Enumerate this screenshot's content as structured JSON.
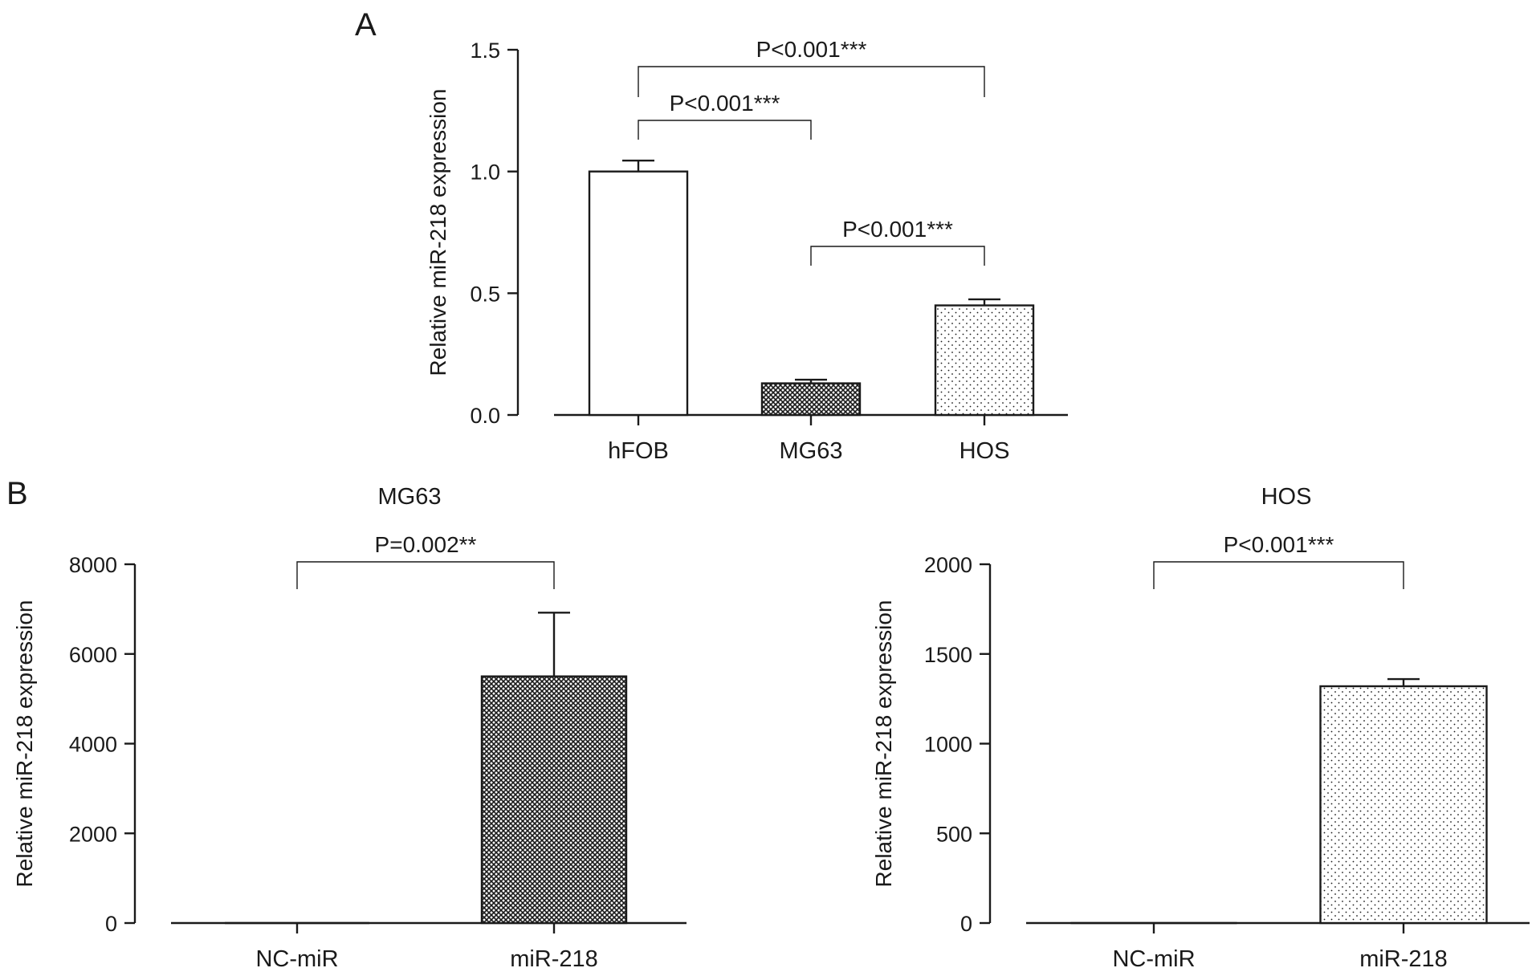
{
  "figure": {
    "colors": {
      "ink": "#1a1a1a",
      "background": "#ffffff"
    }
  },
  "chart_data": [
    {
      "id": "A",
      "panel_label": "A",
      "type": "bar",
      "title": "",
      "ylabel": "Relative miR-218 expression",
      "xlabel": "",
      "categories": [
        "hFOB",
        "MG63",
        "HOS"
      ],
      "values": [
        1.0,
        0.13,
        0.45
      ],
      "errors": [
        0.045,
        0.015,
        0.025
      ],
      "patterns": [
        "none",
        "crosshatch",
        "dots"
      ],
      "ylim": [
        0,
        1.5
      ],
      "yticks": [
        "0.0",
        "0.5",
        "1.0",
        "1.5"
      ],
      "ytick_values": [
        0,
        0.5,
        1.0,
        1.5
      ],
      "comparisons": [
        {
          "from": 0,
          "to": 1,
          "label": "P<0.001***"
        },
        {
          "from": 0,
          "to": 2,
          "label": "P<0.001***"
        },
        {
          "from": 1,
          "to": 2,
          "label": "P<0.001***"
        }
      ],
      "grid": false,
      "legend": "none"
    },
    {
      "id": "B1",
      "panel_label": "B",
      "type": "bar",
      "title": "MG63",
      "ylabel": "Relative miR-218 expression",
      "xlabel": "",
      "categories": [
        "NC-miR",
        "miR-218"
      ],
      "values": [
        1,
        5500
      ],
      "errors": [
        0,
        1420
      ],
      "patterns": [
        "none",
        "crosshatch"
      ],
      "ylim": [
        0,
        8000
      ],
      "yticks": [
        "0",
        "2000",
        "4000",
        "6000",
        "8000"
      ],
      "ytick_values": [
        0,
        2000,
        4000,
        6000,
        8000
      ],
      "comparisons": [
        {
          "from": 0,
          "to": 1,
          "label": "P=0.002**"
        }
      ],
      "grid": false,
      "legend": "none"
    },
    {
      "id": "B2",
      "panel_label": "",
      "type": "bar",
      "title": "HOS",
      "ylabel": "Relative miR-218 expression",
      "xlabel": "",
      "categories": [
        "NC-miR",
        "miR-218"
      ],
      "values": [
        1,
        1320
      ],
      "errors": [
        0,
        40
      ],
      "patterns": [
        "none",
        "dots"
      ],
      "ylim": [
        0,
        2000
      ],
      "yticks": [
        "0",
        "500",
        "1000",
        "1500",
        "2000"
      ],
      "ytick_values": [
        0,
        500,
        1000,
        1500,
        2000
      ],
      "comparisons": [
        {
          "from": 0,
          "to": 1,
          "label": "P<0.001***"
        }
      ],
      "grid": false,
      "legend": "none"
    }
  ]
}
